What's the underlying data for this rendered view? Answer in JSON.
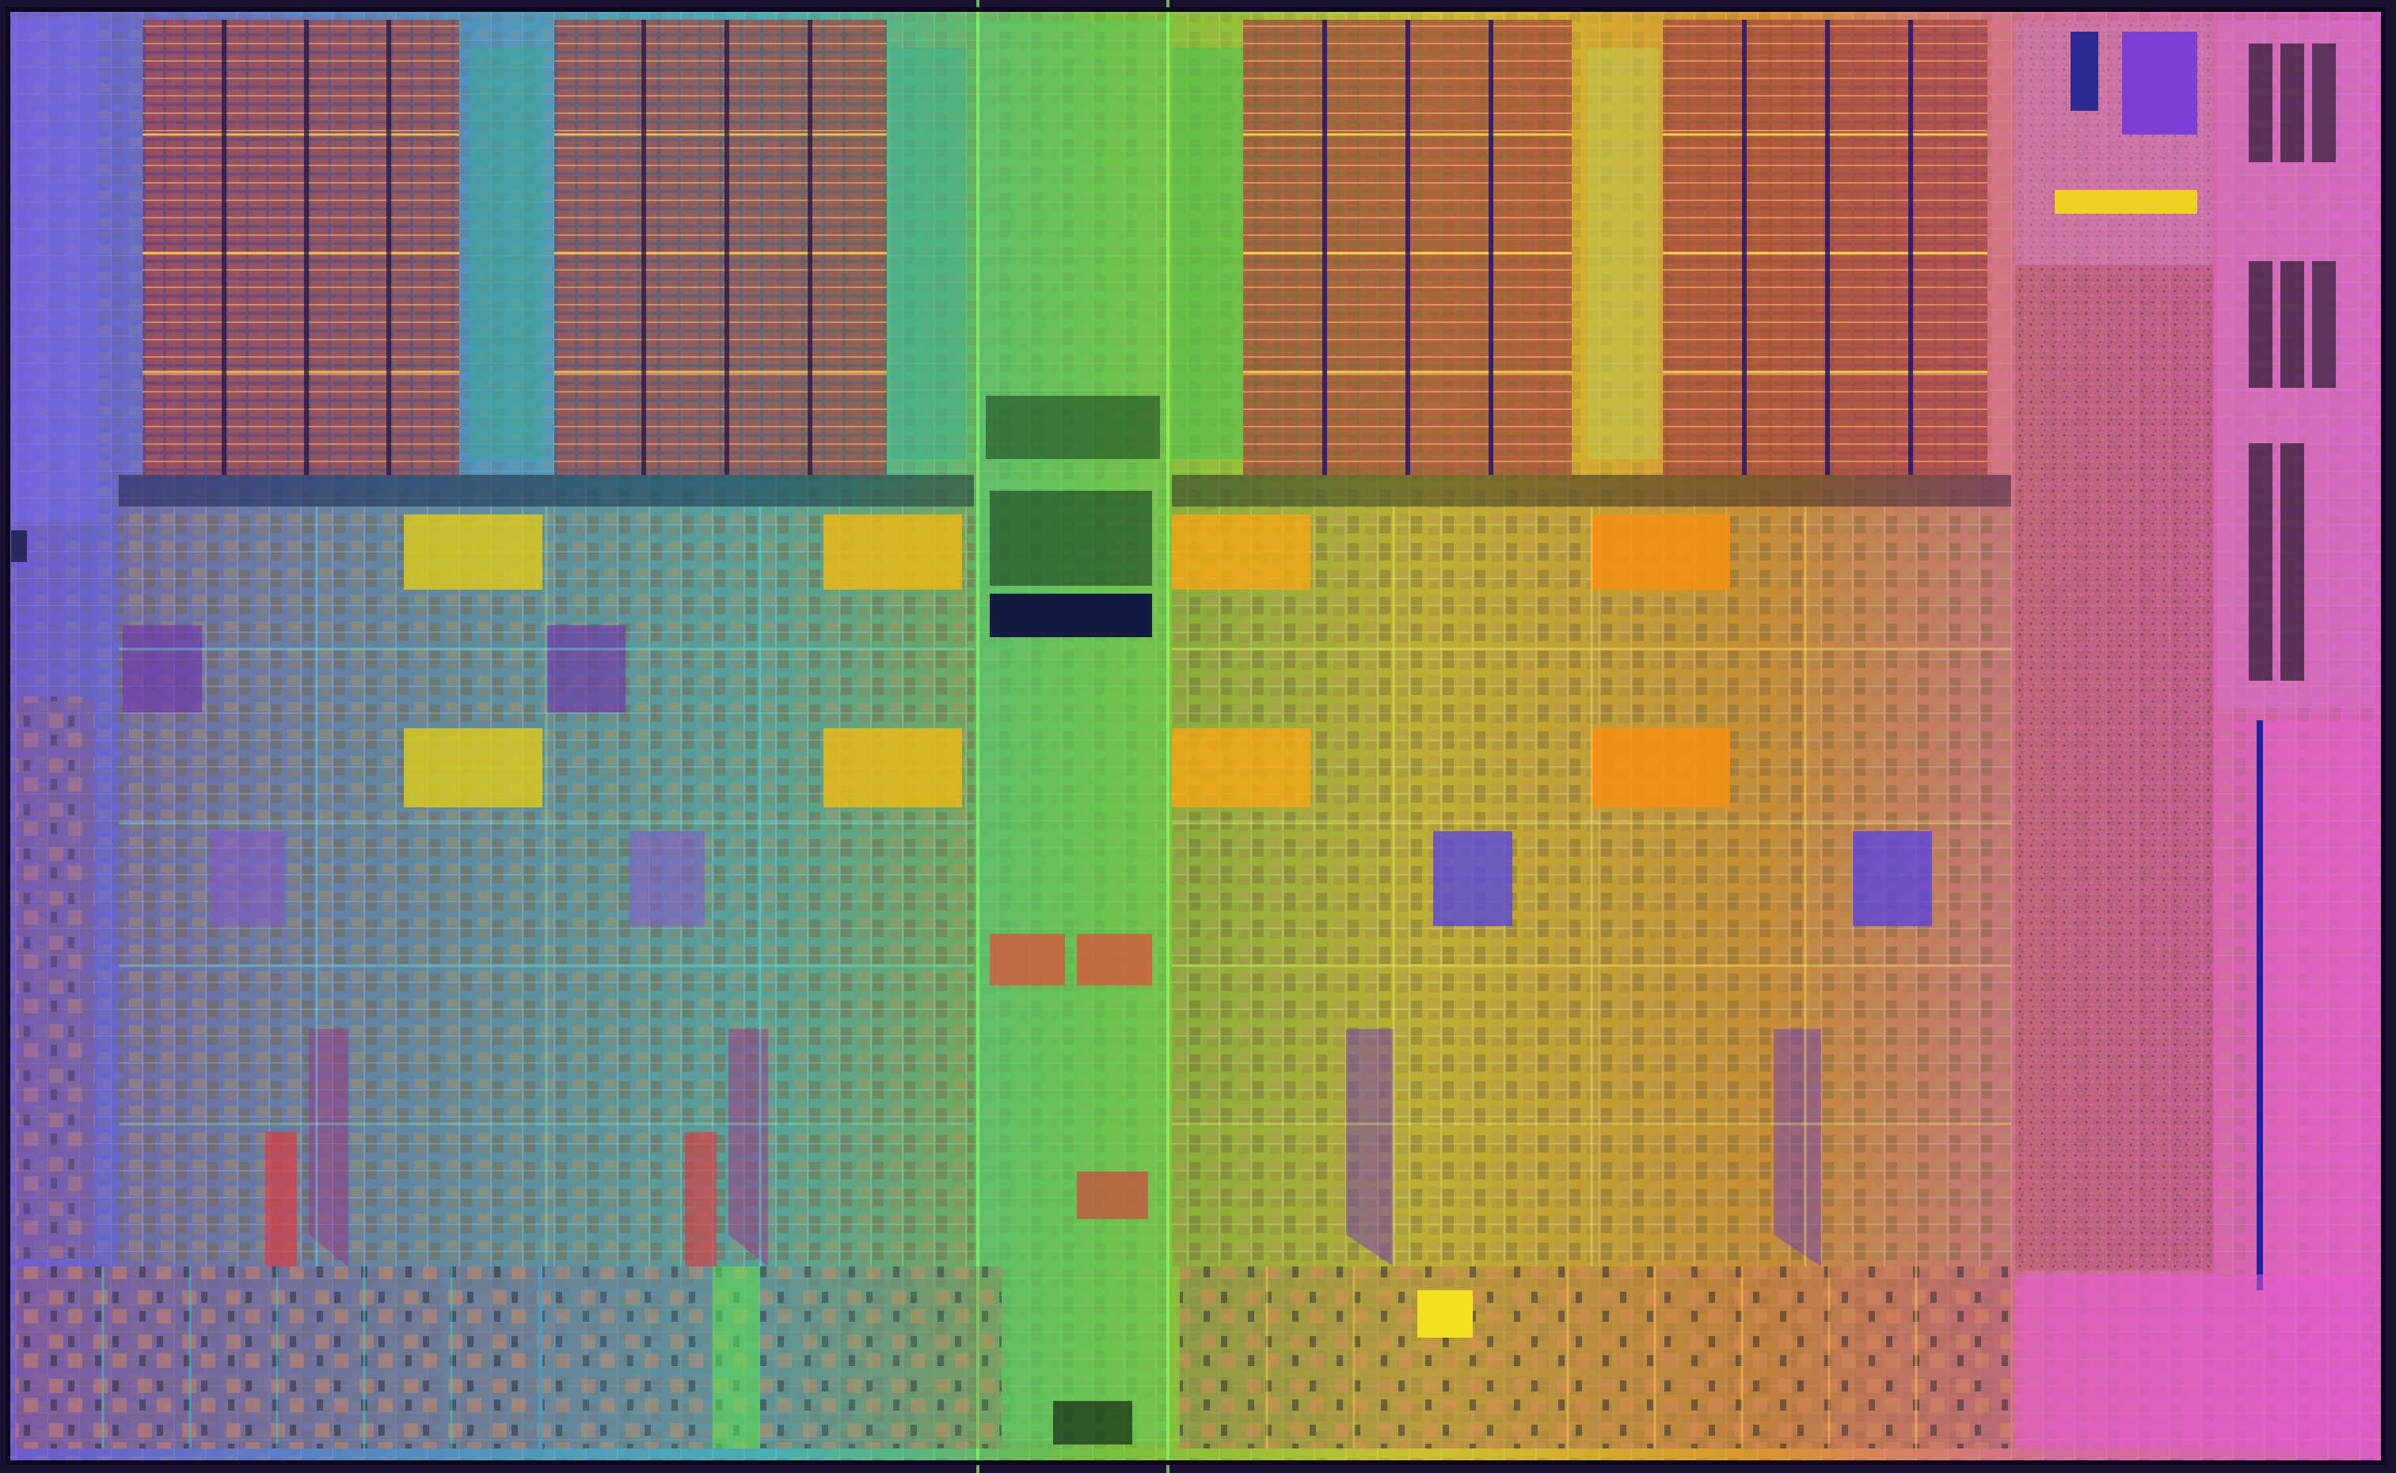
{
  "image": {
    "subject": "die-photo",
    "labels": []
  },
  "palette": {
    "frame": "#1a1030",
    "violet": "#6a55e8",
    "blue": "#4a8fd8",
    "cyan": "#39b9c8",
    "green": "#6ccf3c",
    "yellow": "#d9cf2a",
    "orange": "#e79a2a",
    "pink": "#e06aa8",
    "magenta": "#e85ad8"
  }
}
